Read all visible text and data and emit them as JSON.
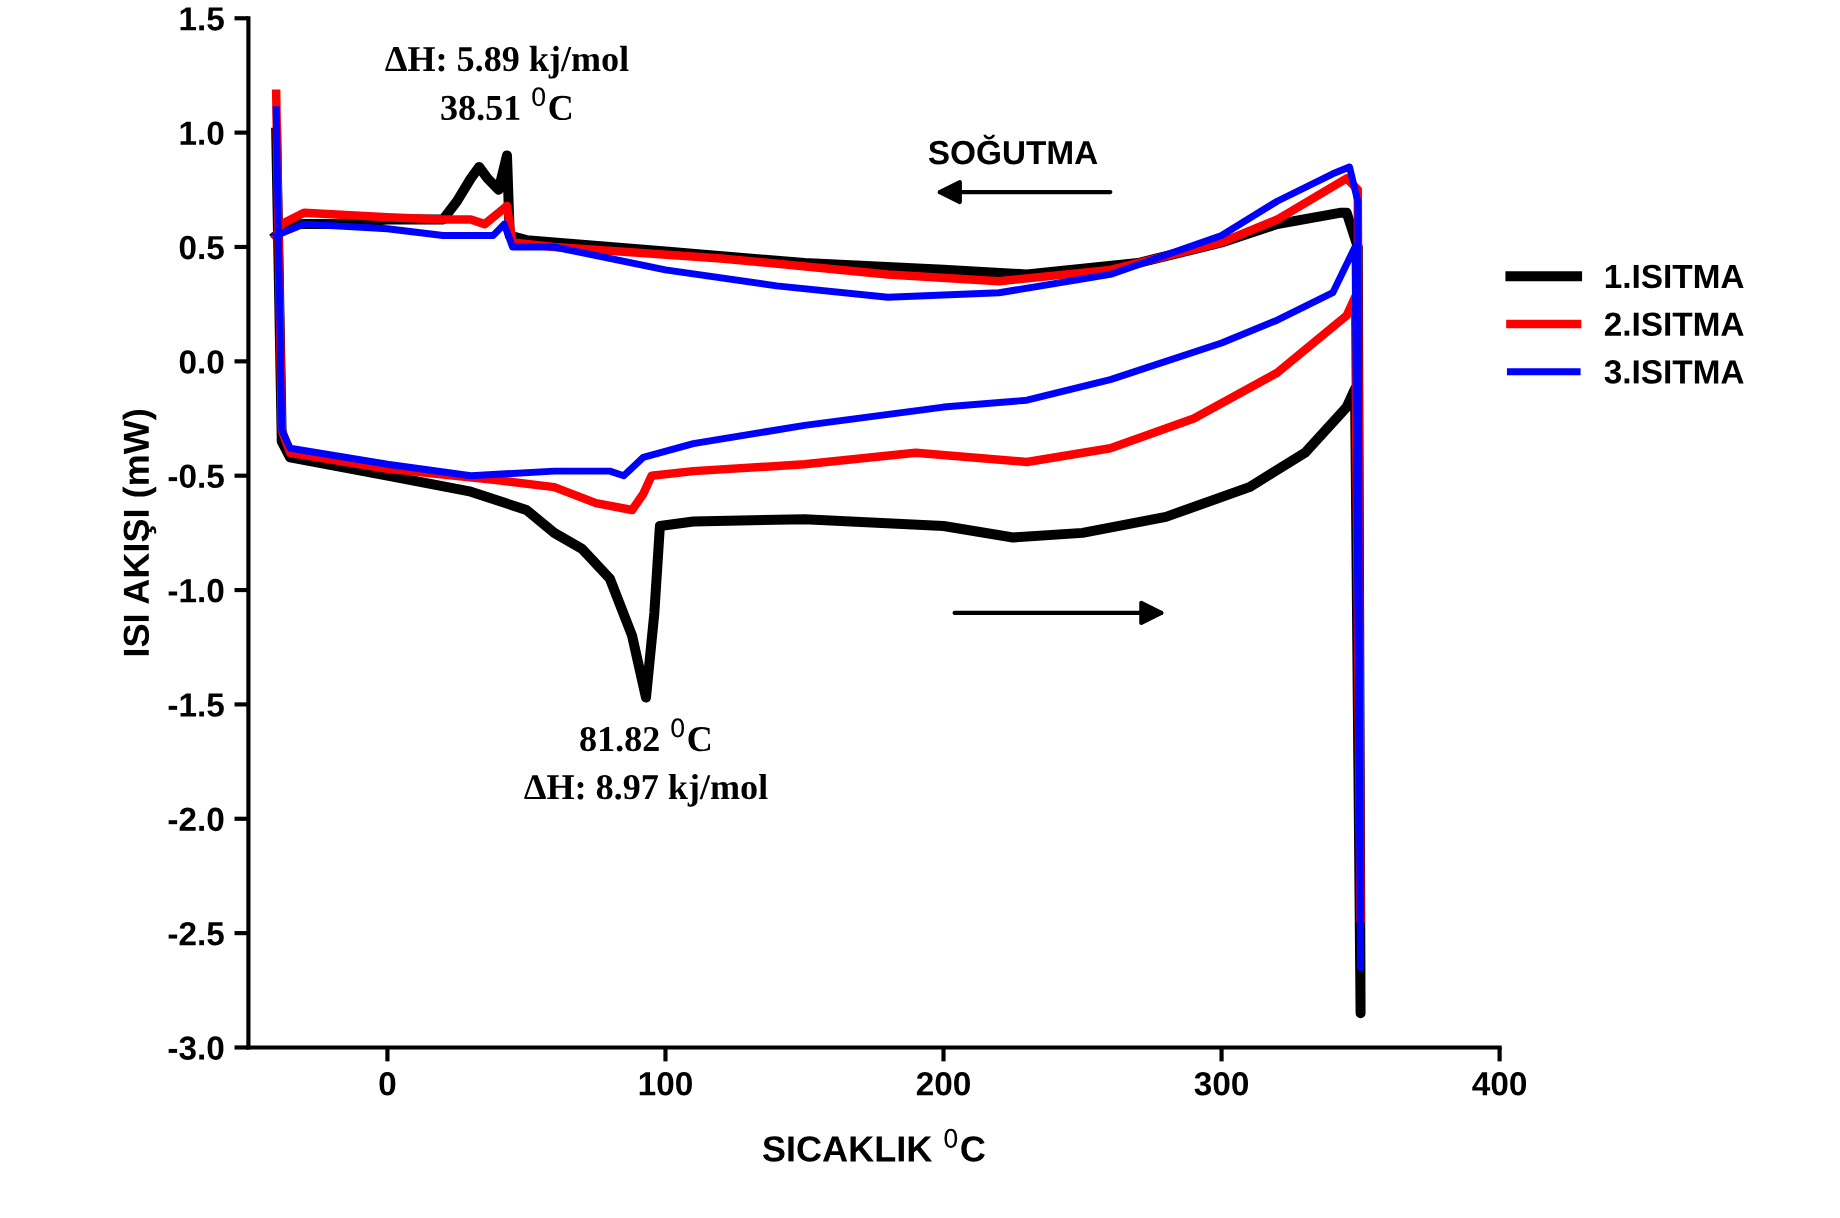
{
  "chart_data": {
    "type": "line",
    "xlabel": "SICAKLIK $^{0}$C",
    "ylabel": "ISI AKIŞI (mW)",
    "xlim": [
      -50,
      400
    ],
    "xticks": [
      0,
      100,
      200,
      300,
      400
    ],
    "ylim": [
      -3.0,
      1.5
    ],
    "yticks": [
      {
        "value": -3.0,
        "label": "-3.0"
      },
      {
        "value": -2.5,
        "label": "-2.5"
      },
      {
        "value": -2.0,
        "label": "-2.0"
      },
      {
        "value": -1.5,
        "label": "-1.5"
      },
      {
        "value": -1.0,
        "label": "-1.0"
      },
      {
        "value": -0.5,
        "label": "-0.5"
      },
      {
        "value": 0.0,
        "label": "0.0"
      },
      {
        "value": 0.5,
        "label": "0.5"
      },
      {
        "value": 1.0,
        "label": "1.0"
      },
      {
        "value": 1.5,
        "label": "1.5"
      }
    ],
    "legend": "right",
    "grid": false,
    "marker": "none",
    "line_style": "solid",
    "series": [
      {
        "name": "1.ISITMA",
        "color": "#000000",
        "x": [
          -40,
          -38,
          -35,
          0,
          30,
          50,
          60,
          70,
          80,
          88,
          93,
          96,
          98,
          110,
          150,
          200,
          225,
          250,
          280,
          310,
          330,
          345,
          348,
          350,
          349,
          345,
          343,
          320,
          300,
          270,
          230,
          200,
          150,
          100,
          50,
          44,
          43,
          40,
          36,
          33,
          30,
          25,
          20,
          0,
          -20,
          -35,
          -40
        ],
        "values": [
          1.0,
          -0.35,
          -0.42,
          -0.5,
          -0.57,
          -0.65,
          -0.75,
          -0.82,
          -0.95,
          -1.2,
          -1.47,
          -1.1,
          -0.72,
          -0.7,
          -0.69,
          -0.72,
          -0.77,
          -0.75,
          -0.68,
          -0.55,
          -0.4,
          -0.2,
          -0.12,
          -2.85,
          0.5,
          0.65,
          0.65,
          0.6,
          0.52,
          0.43,
          0.38,
          0.4,
          0.43,
          0.48,
          0.53,
          0.55,
          0.9,
          0.75,
          0.8,
          0.85,
          0.8,
          0.7,
          0.62,
          0.62,
          0.6,
          0.6,
          0.55
        ]
      },
      {
        "name": "2.ISITMA",
        "color": "#ff0000",
        "x": [
          -40,
          -38,
          -35,
          0,
          40,
          60,
          75,
          88,
          92,
          95,
          110,
          150,
          190,
          230,
          260,
          290,
          320,
          345,
          348,
          350,
          349,
          345,
          320,
          300,
          260,
          220,
          180,
          120,
          60,
          45,
          43,
          40,
          35,
          30,
          20,
          0,
          -30,
          -38,
          -40
        ],
        "values": [
          1.17,
          -0.3,
          -0.4,
          -0.47,
          -0.52,
          -0.55,
          -0.62,
          -0.65,
          -0.58,
          -0.5,
          -0.48,
          -0.45,
          -0.4,
          -0.44,
          -0.38,
          -0.25,
          -0.05,
          0.2,
          0.28,
          -2.45,
          0.75,
          0.8,
          0.62,
          0.52,
          0.4,
          0.35,
          0.38,
          0.45,
          0.5,
          0.52,
          0.68,
          0.65,
          0.6,
          0.62,
          0.62,
          0.63,
          0.65,
          0.6,
          0.55
        ]
      },
      {
        "name": "3.ISITMA",
        "color": "#0000ff",
        "x": [
          -40,
          -38,
          -35,
          0,
          30,
          60,
          80,
          85,
          92,
          110,
          150,
          200,
          230,
          260,
          300,
          320,
          340,
          348,
          350,
          349,
          346,
          340,
          320,
          300,
          260,
          220,
          180,
          140,
          100,
          60,
          45,
          42,
          38,
          20,
          0,
          -30,
          -40
        ],
        "values": [
          1.1,
          -0.3,
          -0.38,
          -0.45,
          -0.5,
          -0.48,
          -0.48,
          -0.5,
          -0.42,
          -0.36,
          -0.28,
          -0.2,
          -0.17,
          -0.08,
          0.08,
          0.18,
          0.3,
          0.5,
          -2.65,
          0.7,
          0.85,
          0.82,
          0.7,
          0.55,
          0.38,
          0.3,
          0.28,
          0.33,
          0.4,
          0.5,
          0.5,
          0.6,
          0.55,
          0.55,
          0.58,
          0.6,
          0.55
        ]
      }
    ],
    "annotations": [
      {
        "text": "ΔH: 5.89 kj/mol\n38.51 $^{0}$C",
        "x": 43,
        "y": 0.9
      },
      {
        "text": "81.82 $^{0}$C\nΔH: 8.97 kj/mol",
        "x": 93,
        "y": -1.47
      },
      "SOĞUTMA"
    ]
  }
}
